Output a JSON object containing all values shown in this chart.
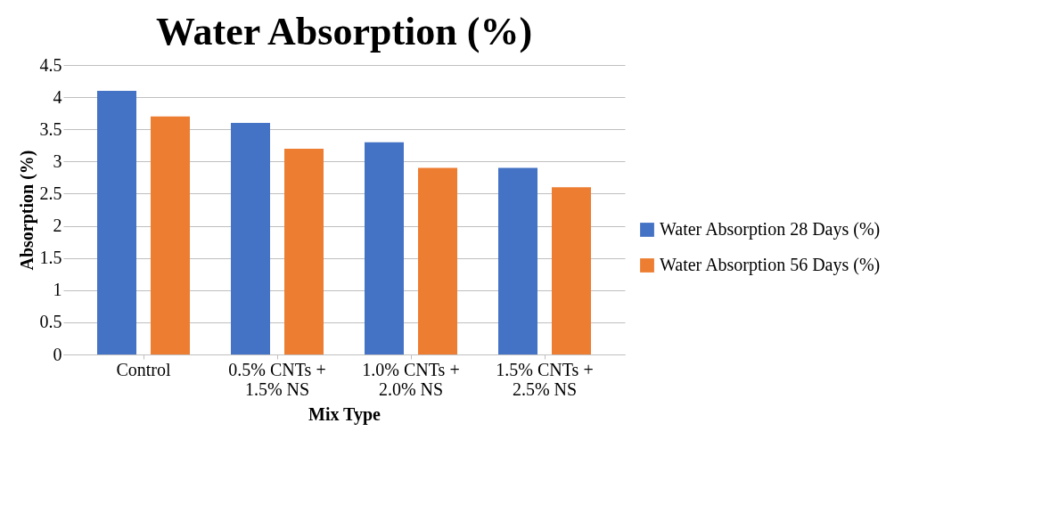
{
  "chart_data": {
    "type": "bar",
    "title": "Water Absorption (%)",
    "xlabel": "Mix Type",
    "ylabel": "Absorption (%)",
    "categories": [
      "Control",
      "0.5% CNTs +\n1.5% NS",
      "1.0% CNTs +\n2.0% NS",
      "1.5% CNTs +\n2.5% NS"
    ],
    "series": [
      {
        "name": "Water Absorption 28 Days (%)",
        "color": "#4472c4",
        "values": [
          4.1,
          3.6,
          3.3,
          2.9
        ]
      },
      {
        "name": "Water Absorption 56 Days (%)",
        "color": "#ed7d31",
        "values": [
          3.7,
          3.2,
          2.9,
          2.6
        ]
      }
    ],
    "ylim": [
      0,
      4.5
    ],
    "yticks": [
      0,
      0.5,
      1,
      1.5,
      2,
      2.5,
      3,
      3.5,
      4,
      4.5
    ],
    "grid": "y",
    "legend": "right"
  }
}
